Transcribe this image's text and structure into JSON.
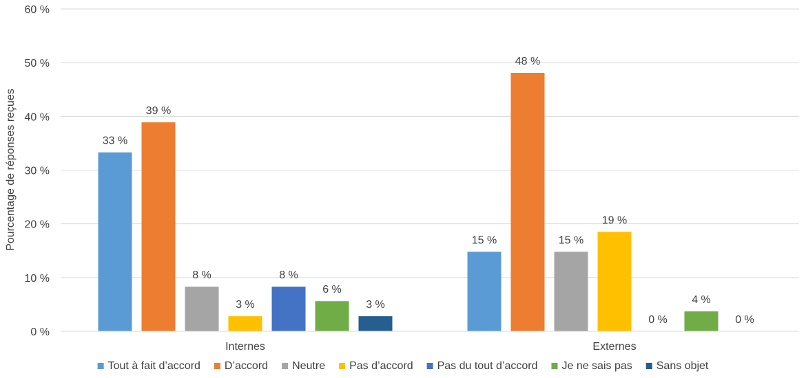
{
  "chart_data": {
    "type": "bar",
    "ylabel": "Pourcentage de réponses reçues",
    "xlabel": "",
    "ylim": [
      0,
      60
    ],
    "yticks": [
      0,
      10,
      20,
      30,
      40,
      50,
      60
    ],
    "ytick_labels": [
      "0 %",
      "10 %",
      "20 %",
      "30 %",
      "40 %",
      "50 %",
      "60 %"
    ],
    "grid": true,
    "legend_position": "bottom",
    "categories": [
      "Internes",
      "Externes"
    ],
    "series": [
      {
        "name": "Tout à fait d’accord",
        "color": "#5B9BD5",
        "values": [
          33.3,
          14.8
        ],
        "labels": [
          "33 %",
          "15 %"
        ]
      },
      {
        "name": "D’accord",
        "color": "#ED7D31",
        "values": [
          38.9,
          48.1
        ],
        "labels": [
          "39 %",
          "48 %"
        ]
      },
      {
        "name": "Neutre",
        "color": "#A5A5A5",
        "values": [
          8.3,
          14.8
        ],
        "labels": [
          "8 %",
          "15 %"
        ]
      },
      {
        "name": "Pas d’accord",
        "color": "#FFC000",
        "values": [
          2.8,
          18.5
        ],
        "labels": [
          "3 %",
          "19 %"
        ]
      },
      {
        "name": "Pas du tout d’accord",
        "color": "#4472C4",
        "values": [
          8.3,
          0
        ],
        "labels": [
          "8 %",
          "0 %"
        ]
      },
      {
        "name": "Je ne sais pas",
        "color": "#70AD47",
        "values": [
          5.6,
          3.7
        ],
        "labels": [
          "6 %",
          "4 %"
        ]
      },
      {
        "name": "Sans objet",
        "color": "#255E91",
        "values": [
          2.8,
          0
        ],
        "labels": [
          "3 %",
          "0 %"
        ]
      }
    ]
  }
}
